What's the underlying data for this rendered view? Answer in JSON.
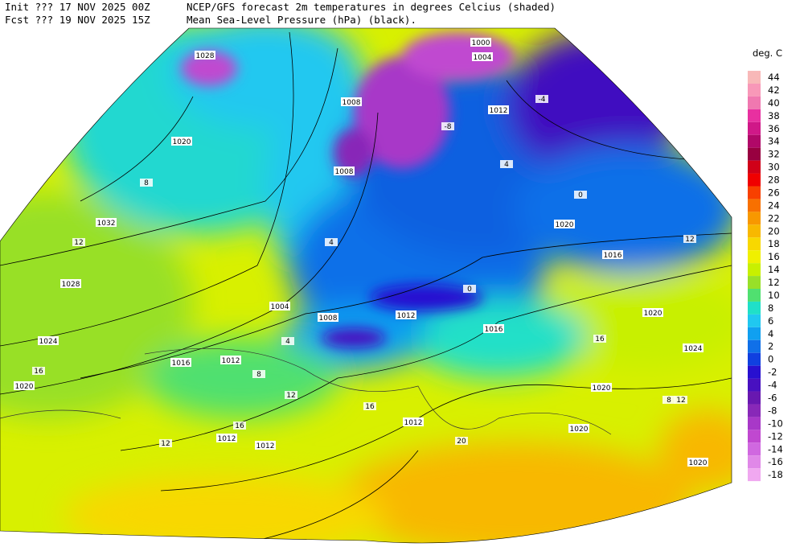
{
  "header": {
    "init": "Init  ??? 17 NOV 2025 00Z",
    "fcst": "Fcst ??? 19 NOV 2025 15Z",
    "line1": "NCEP/GFS forecast 2m temperatures in degrees Celcius (shaded)",
    "line2": "Mean Sea-Level Pressure (hPa) (black)."
  },
  "legend": {
    "unit": "deg. C",
    "levels": [
      44,
      42,
      40,
      38,
      36,
      34,
      32,
      30,
      28,
      26,
      24,
      22,
      20,
      18,
      16,
      14,
      12,
      10,
      8,
      6,
      4,
      2,
      0,
      -2,
      -4,
      -6,
      -8,
      -10,
      -12,
      -14,
      -16,
      -18
    ],
    "colors": [
      "#f8b8b8",
      "#f898b8",
      "#f078b0",
      "#e830a0",
      "#d01888",
      "#b00868",
      "#980040",
      "#d00018",
      "#f00000",
      "#f84000",
      "#f87000",
      "#f89800",
      "#f8b800",
      "#f8d800",
      "#f0f000",
      "#c8f000",
      "#98e028",
      "#50e070",
      "#20e0c8",
      "#20c8f0",
      "#10a0f0",
      "#1070e8",
      "#1040e0",
      "#2810d0",
      "#4810c0",
      "#6818b0",
      "#8828b8",
      "#a838c8",
      "#c048d0",
      "#d068e0",
      "#e088e8",
      "#f0a8f0"
    ]
  },
  "isobar_labels": [
    "1028",
    "1032",
    "1028",
    "1024",
    "1020",
    "1016",
    "1012",
    "1012",
    "1012",
    "1008",
    "1008",
    "1008",
    "1004",
    "1004",
    "1000",
    "1012",
    "1020",
    "1016",
    "1012",
    "1020",
    "1024",
    "1020",
    "1020",
    "1012",
    "1020",
    "1020",
    "1016"
  ],
  "temp_labels": [
    "12",
    "8",
    "4",
    "16",
    "12",
    "16",
    "20",
    "16",
    "8",
    "4",
    "0",
    "-4",
    "-8",
    "12",
    "16",
    "12",
    "4",
    "0",
    "8",
    "12"
  ]
}
